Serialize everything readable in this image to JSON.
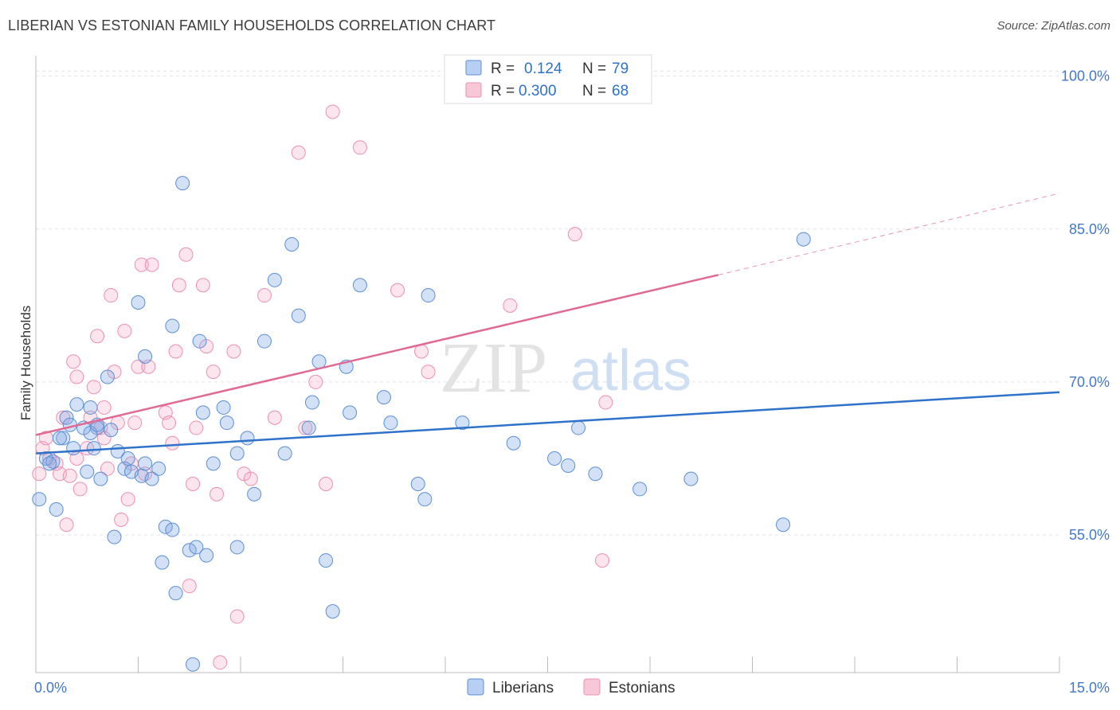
{
  "title": "LIBERIAN VS ESTONIAN FAMILY HOUSEHOLDS CORRELATION CHART",
  "source": "Source: ZipAtlas.com",
  "watermark": {
    "zip": "ZIP",
    "atlas": "atlas"
  },
  "colors": {
    "liberians": "#5b8fd6",
    "estonians": "#ee8fb0",
    "liberians_line": "#2f72c9",
    "estonians_line": "#e06a94",
    "tick_label": "#4477cc"
  },
  "legend": {
    "rows": [
      {
        "r_label": "R =",
        "r_value": "0.124",
        "n_label": "N =",
        "n_value": "79"
      },
      {
        "r_label": "R =",
        "r_value": "0.300",
        "n_label": "N =",
        "n_value": "68"
      }
    ]
  },
  "bottom_legend": [
    "Liberians",
    "Estonians"
  ],
  "chart_data": {
    "type": "scatter",
    "ylabel": "Family Households",
    "xlabel": "",
    "xlim": [
      0,
      15
    ],
    "ylim": [
      41.5,
      102
    ],
    "x_tick_labels": [
      "0.0%",
      "15.0%"
    ],
    "y_ticks": [
      55,
      70,
      85,
      100
    ],
    "y_tick_labels": [
      "55.0%",
      "70.0%",
      "85.0%",
      "100.0%"
    ],
    "grid": "horizontal dashed",
    "series": [
      {
        "name": "Liberians",
        "points": [
          [
            0.05,
            58.5
          ],
          [
            0.15,
            62.5
          ],
          [
            0.25,
            62.2
          ],
          [
            0.3,
            57.5
          ],
          [
            0.4,
            64.5
          ],
          [
            0.45,
            66.5
          ],
          [
            0.5,
            65.8
          ],
          [
            0.55,
            63.5
          ],
          [
            0.6,
            67.8
          ],
          [
            0.7,
            65.5
          ],
          [
            0.75,
            61.2
          ],
          [
            0.8,
            67.5
          ],
          [
            0.85,
            63.5
          ],
          [
            0.9,
            65.5
          ],
          [
            0.95,
            60.5
          ],
          [
            1.05,
            70.5
          ],
          [
            1.1,
            65.3
          ],
          [
            1.15,
            54.8
          ],
          [
            1.2,
            63.2
          ],
          [
            1.3,
            61.5
          ],
          [
            1.35,
            62.5
          ],
          [
            1.4,
            61.2
          ],
          [
            1.5,
            77.8
          ],
          [
            1.55,
            60.8
          ],
          [
            1.6,
            72.5
          ],
          [
            1.7,
            60.5
          ],
          [
            1.8,
            61.5
          ],
          [
            1.85,
            52.3
          ],
          [
            1.9,
            55.8
          ],
          [
            2.0,
            55.5
          ],
          [
            2.0,
            75.5
          ],
          [
            2.05,
            49.3
          ],
          [
            2.15,
            89.5
          ],
          [
            2.25,
            53.5
          ],
          [
            2.3,
            42.3
          ],
          [
            2.35,
            53.8
          ],
          [
            2.4,
            74.0
          ],
          [
            2.45,
            67.0
          ],
          [
            2.5,
            53.0
          ],
          [
            2.6,
            62.0
          ],
          [
            2.75,
            67.5
          ],
          [
            2.8,
            66.0
          ],
          [
            2.95,
            63.0
          ],
          [
            2.95,
            53.8
          ],
          [
            3.1,
            64.5
          ],
          [
            3.2,
            59.0
          ],
          [
            3.35,
            74.0
          ],
          [
            3.5,
            80.0
          ],
          [
            3.65,
            63.0
          ],
          [
            3.75,
            83.5
          ],
          [
            3.85,
            76.5
          ],
          [
            4.0,
            65.5
          ],
          [
            4.05,
            68.0
          ],
          [
            4.15,
            72.0
          ],
          [
            4.25,
            52.5
          ],
          [
            4.35,
            47.5
          ],
          [
            4.55,
            71.5
          ],
          [
            4.6,
            67.0
          ],
          [
            4.75,
            79.5
          ],
          [
            5.1,
            68.5
          ],
          [
            5.2,
            66.0
          ],
          [
            5.6,
            60.0
          ],
          [
            5.7,
            58.5
          ],
          [
            5.75,
            78.5
          ],
          [
            6.25,
            66.0
          ],
          [
            7.0,
            64.0
          ],
          [
            7.6,
            62.5
          ],
          [
            7.8,
            61.8
          ],
          [
            7.95,
            65.5
          ],
          [
            8.2,
            61.0
          ],
          [
            8.85,
            59.5
          ],
          [
            9.6,
            60.5
          ],
          [
            10.95,
            56.0
          ],
          [
            11.25,
            84.0
          ],
          [
            0.8,
            65.0
          ],
          [
            0.9,
            65.8
          ],
          [
            1.6,
            62.0
          ],
          [
            0.35,
            64.5
          ],
          [
            0.2,
            62.0
          ]
        ]
      },
      {
        "name": "Estonians",
        "points": [
          [
            0.05,
            61.0
          ],
          [
            0.1,
            63.5
          ],
          [
            0.15,
            64.5
          ],
          [
            0.2,
            62.5
          ],
          [
            0.3,
            62.0
          ],
          [
            0.35,
            61.0
          ],
          [
            0.4,
            66.5
          ],
          [
            0.45,
            56.0
          ],
          [
            0.5,
            60.8
          ],
          [
            0.55,
            72.0
          ],
          [
            0.6,
            70.5
          ],
          [
            0.65,
            59.5
          ],
          [
            0.75,
            63.5
          ],
          [
            0.8,
            66.5
          ],
          [
            0.85,
            69.5
          ],
          [
            0.9,
            74.5
          ],
          [
            0.95,
            65.5
          ],
          [
            1.0,
            67.5
          ],
          [
            1.05,
            61.5
          ],
          [
            1.1,
            78.5
          ],
          [
            1.15,
            71.0
          ],
          [
            1.2,
            66.0
          ],
          [
            1.25,
            56.5
          ],
          [
            1.3,
            75.0
          ],
          [
            1.35,
            58.5
          ],
          [
            1.4,
            62.0
          ],
          [
            1.45,
            66.0
          ],
          [
            1.5,
            71.5
          ],
          [
            1.55,
            81.5
          ],
          [
            1.6,
            61.0
          ],
          [
            1.65,
            71.5
          ],
          [
            1.7,
            81.5
          ],
          [
            1.9,
            67.0
          ],
          [
            1.95,
            66.0
          ],
          [
            2.0,
            64.0
          ],
          [
            2.05,
            73.0
          ],
          [
            2.1,
            79.5
          ],
          [
            2.2,
            82.5
          ],
          [
            2.25,
            50.0
          ],
          [
            2.3,
            60.0
          ],
          [
            2.35,
            65.5
          ],
          [
            2.45,
            79.5
          ],
          [
            2.5,
            73.5
          ],
          [
            2.6,
            71.0
          ],
          [
            2.65,
            59.0
          ],
          [
            2.7,
            42.5
          ],
          [
            2.9,
            73.0
          ],
          [
            2.95,
            47.0
          ],
          [
            3.05,
            61.0
          ],
          [
            3.15,
            60.5
          ],
          [
            3.35,
            78.5
          ],
          [
            3.5,
            66.5
          ],
          [
            3.85,
            92.5
          ],
          [
            3.95,
            65.5
          ],
          [
            4.1,
            70.0
          ],
          [
            4.25,
            60.0
          ],
          [
            4.35,
            96.5
          ],
          [
            4.75,
            93.0
          ],
          [
            5.3,
            79.0
          ],
          [
            5.65,
            73.0
          ],
          [
            5.75,
            71.0
          ],
          [
            6.25,
            100.0
          ],
          [
            6.95,
            77.5
          ],
          [
            7.9,
            84.5
          ],
          [
            8.35,
            68.0
          ],
          [
            8.3,
            52.5
          ],
          [
            0.6,
            62.5
          ],
          [
            1.0,
            64.5
          ]
        ]
      }
    ],
    "trendlines": [
      {
        "series": "Liberians",
        "from": [
          0,
          63.0
        ],
        "to": [
          15,
          69.0
        ]
      },
      {
        "series": "Estonians",
        "from": [
          0,
          64.8
        ],
        "to": [
          10.0,
          80.5
        ],
        "dashed_to": [
          15,
          88.5
        ]
      }
    ]
  }
}
